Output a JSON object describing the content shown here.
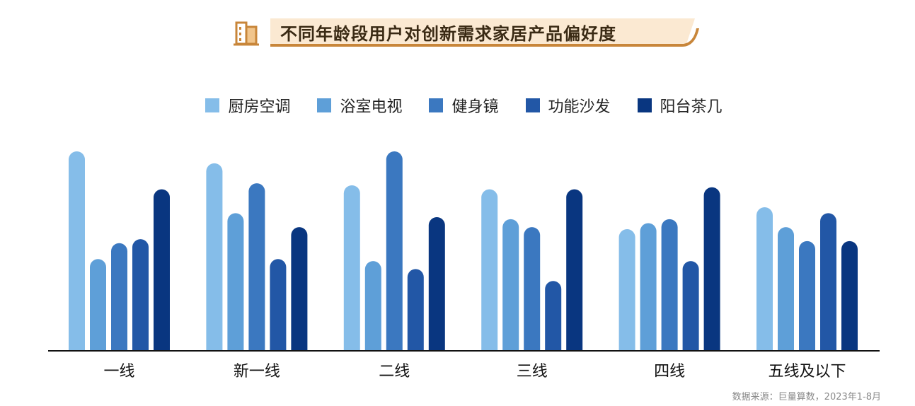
{
  "title": "不同年龄段用户对创新需求家居产品偏好度",
  "source_note": "数据来源：巨量算数，2023年1-8月",
  "colors": {
    "title_accent": "#c8863a",
    "title_banner": "#fbe9d2",
    "axis": "#111111"
  },
  "chart_data": {
    "type": "bar",
    "title": "不同年龄段用户对创新需求家居产品偏好度",
    "xlabel": "",
    "ylabel": "",
    "ylim": [
      0,
      100
    ],
    "grid": false,
    "y_axis_visible": false,
    "legend_position": "top-center",
    "categories": [
      "一线",
      "新一线",
      "二线",
      "三线",
      "四线",
      "五线及以下"
    ],
    "series": [
      {
        "name": "厨房空调",
        "color": "#85bde9",
        "values": [
          100,
          94,
          83,
          81,
          61,
          72
        ]
      },
      {
        "name": "浴室电视",
        "color": "#5e9fd8",
        "values": [
          46,
          69,
          45,
          66,
          64,
          62
        ]
      },
      {
        "name": "健身镜",
        "color": "#3b78c0",
        "values": [
          54,
          84,
          100,
          62,
          66,
          55
        ]
      },
      {
        "name": "功能沙发",
        "color": "#2257a6",
        "values": [
          56,
          46,
          41,
          35,
          45,
          69
        ]
      },
      {
        "name": "阳台茶几",
        "color": "#093680",
        "values": [
          81,
          62,
          67,
          81,
          82,
          55
        ]
      }
    ]
  }
}
